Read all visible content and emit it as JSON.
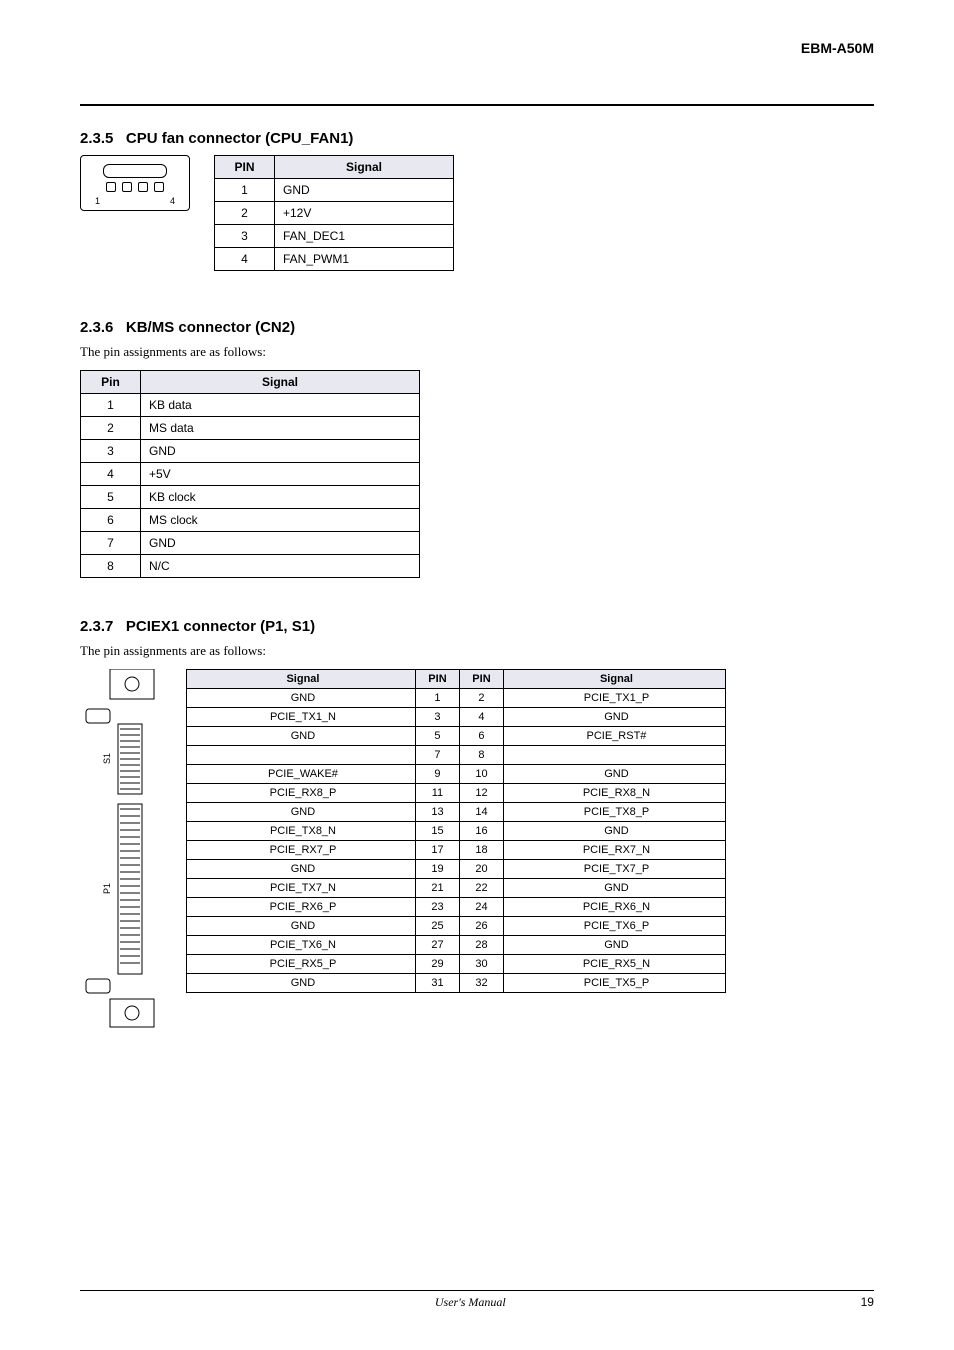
{
  "header": {
    "product": "EBM-A50M"
  },
  "section_cpufan": {
    "number": "2.3.5",
    "title": "CPU fan connector (CPU_FAN1)",
    "tableHeaders": [
      "PIN",
      "Signal"
    ],
    "rows": [
      [
        "1",
        "GND"
      ],
      [
        "2",
        "+12V"
      ],
      [
        "3",
        "FAN_DEC1"
      ],
      [
        "4",
        "FAN_PWM1"
      ]
    ]
  },
  "section_kb": {
    "number": "2.3.6",
    "title": "KB/MS connector (CN2)",
    "sub": "The pin assignments are as follows:",
    "tableHeaders": [
      "Pin",
      "Signal"
    ],
    "rows": [
      [
        "1",
        "KB data"
      ],
      [
        "2",
        "MS data"
      ],
      [
        "3",
        "GND"
      ],
      [
        "4",
        "+5V"
      ],
      [
        "5",
        "KB clock"
      ],
      [
        "6",
        "MS clock"
      ],
      [
        "7",
        "GND"
      ],
      [
        "8",
        "N/C"
      ]
    ]
  },
  "section_pcie": {
    "number": "2.3.7",
    "title": "PCIEX1 connector (P1, S1)",
    "sub": "The pin assignments are as follows:",
    "connectorLabelP1": "P1",
    "connectorLabelS1": "S1",
    "tableHeaders": [
      "Signal",
      "PIN",
      "PIN",
      "Signal"
    ],
    "rows": [
      [
        "GND",
        "1",
        "2",
        "PCIE_TX1_P"
      ],
      [
        "PCIE_TX1_N",
        "3",
        "4",
        "GND"
      ],
      [
        "GND",
        "5",
        "6",
        "PCIE_RST#"
      ],
      [
        "",
        "7",
        "8",
        ""
      ],
      [
        "PCIE_WAKE#",
        "9",
        "10",
        "GND"
      ],
      [
        "PCIE_RX8_P",
        "11",
        "12",
        "PCIE_RX8_N"
      ],
      [
        "GND",
        "13",
        "14",
        "PCIE_TX8_P"
      ],
      [
        "PCIE_TX8_N",
        "15",
        "16",
        "GND"
      ],
      [
        "PCIE_RX7_P",
        "17",
        "18",
        "PCIE_RX7_N"
      ],
      [
        "GND",
        "19",
        "20",
        "PCIE_TX7_P"
      ],
      [
        "PCIE_TX7_N",
        "21",
        "22",
        "GND"
      ],
      [
        "PCIE_RX6_P",
        "23",
        "24",
        "PCIE_RX6_N"
      ],
      [
        "GND",
        "25",
        "26",
        "PCIE_TX6_P"
      ],
      [
        "PCIE_TX6_N",
        "27",
        "28",
        "GND"
      ],
      [
        "PCIE_RX5_P",
        "29",
        "30",
        "PCIE_RX5_N"
      ],
      [
        "GND",
        "31",
        "32",
        "PCIE_TX5_P"
      ]
    ]
  },
  "footer": {
    "center": "User's Manual",
    "page": "19"
  },
  "colors": {
    "headerBg": "#e8e8f0",
    "border": "#000000",
    "text": "#000000"
  }
}
